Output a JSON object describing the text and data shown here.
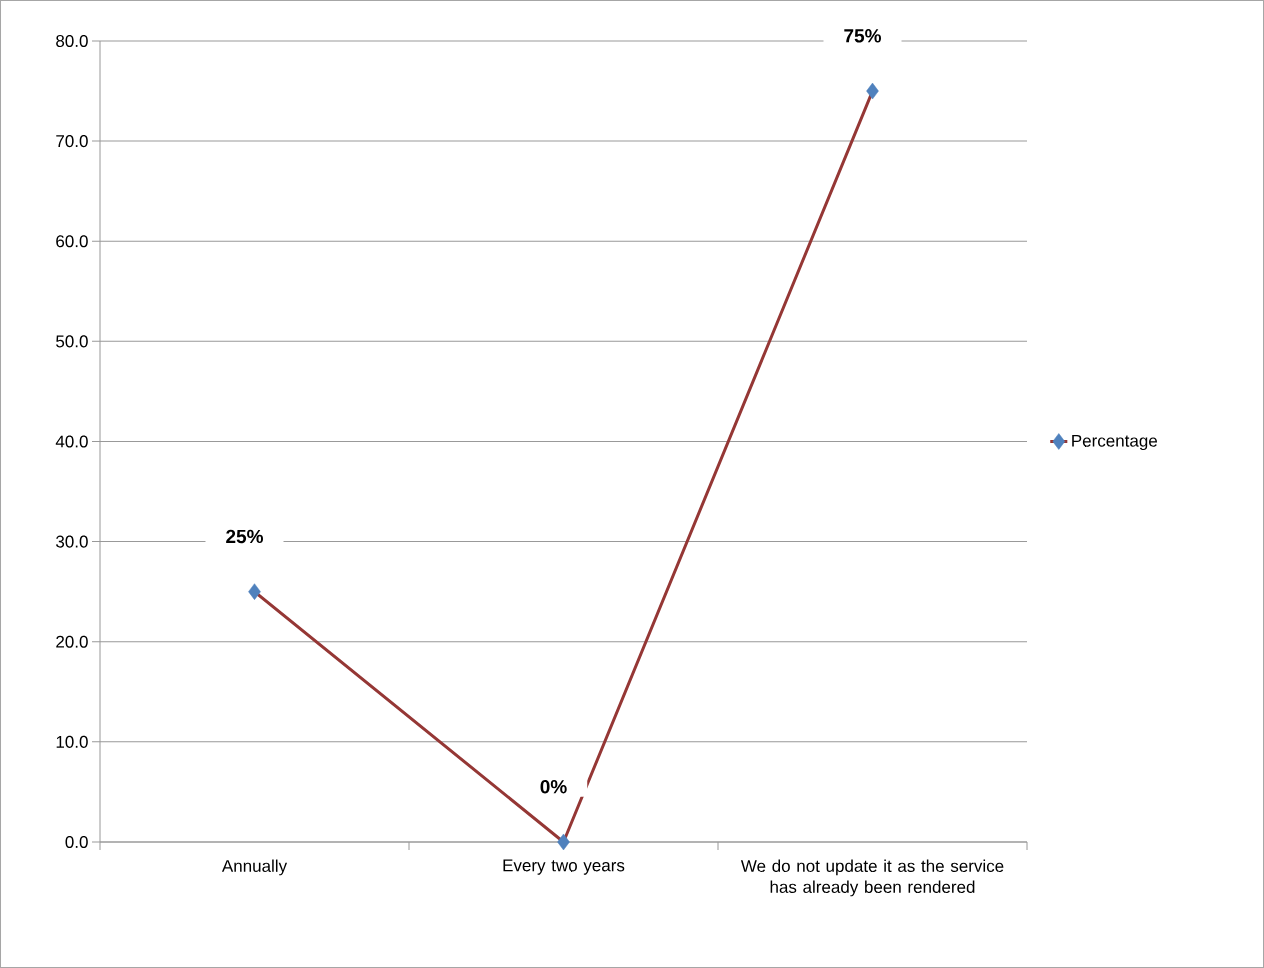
{
  "chart_data": {
    "type": "line",
    "categories": [
      "Annually",
      "Every two years",
      "We do not update it as the service has already been rendered"
    ],
    "series": [
      {
        "name": "Percentage",
        "color": "#953735",
        "values": [
          25,
          0,
          75
        ],
        "value_labels": [
          "25%",
          "0%",
          "75%"
        ]
      }
    ],
    "ylim": [
      0,
      80
    ],
    "yticks": [
      {
        "value": 0,
        "label": "0.0"
      },
      {
        "value": 10,
        "label": "10.0"
      },
      {
        "value": 20,
        "label": "20.0"
      },
      {
        "value": 30,
        "label": "30.0"
      },
      {
        "value": 40,
        "label": "40.0"
      },
      {
        "value": 50,
        "label": "50.0"
      },
      {
        "value": 60,
        "label": "60.0"
      },
      {
        "value": 70,
        "label": "70.0"
      },
      {
        "value": 80,
        "label": "80.0"
      }
    ],
    "grid": "y",
    "legend": "right",
    "marker": "diamond",
    "line_style": "solid"
  }
}
